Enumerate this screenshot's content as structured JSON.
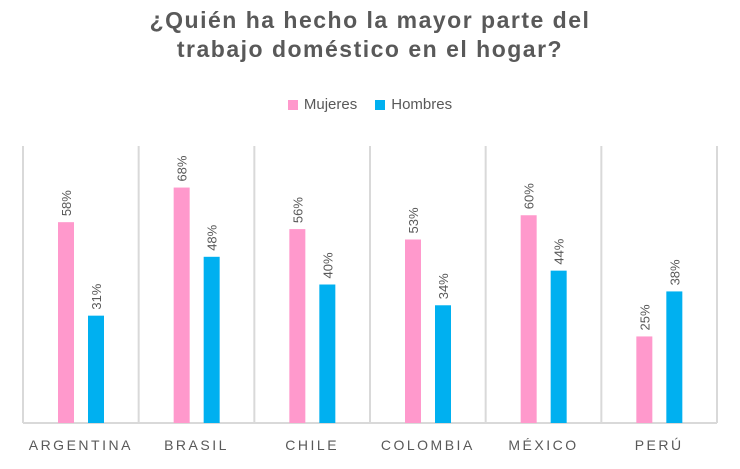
{
  "chart_data": {
    "type": "bar",
    "title": "¿Quién ha hecho la mayor parte del trabajo doméstico en el hogar?",
    "title_lines": [
      "¿Quién ha hecho la mayor parte del",
      "trabajo doméstico en el hogar?"
    ],
    "categories": [
      "ARGENTINA",
      "BRASIL",
      "CHILE",
      "COLOMBIA",
      "MÉXICO",
      "PERÚ"
    ],
    "series": [
      {
        "name": "Mujeres",
        "color": "#FF99CC",
        "values": [
          58,
          68,
          56,
          53,
          60,
          25
        ]
      },
      {
        "name": "Hombres",
        "color": "#00B0F0",
        "values": [
          31,
          48,
          40,
          34,
          44,
          38
        ]
      }
    ],
    "value_format": "percent",
    "xlabel": "",
    "ylabel": "",
    "ylim": [
      0,
      80
    ],
    "grid": "vertical category separators",
    "legend": "top-center"
  }
}
